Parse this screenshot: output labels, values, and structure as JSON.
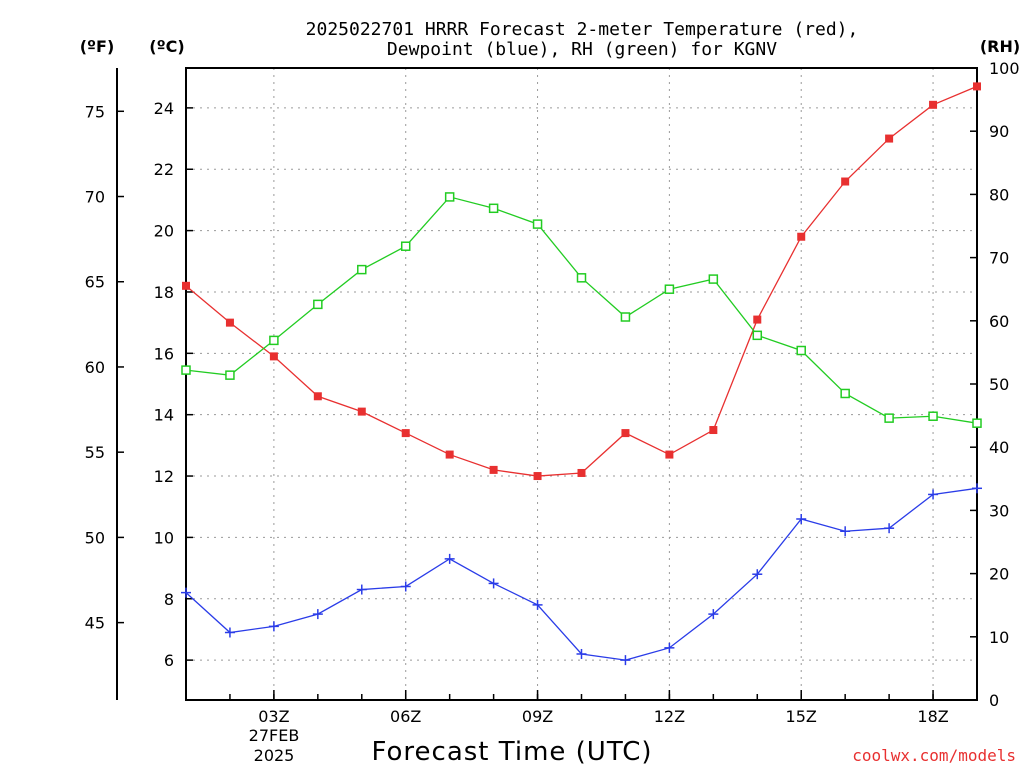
{
  "chart_data": {
    "type": "line",
    "title_line1": "2025022701 HRRR Forecast 2-meter Temperature (red),",
    "title_line2": "Dewpoint (blue), RH (green) for KGNV",
    "xlabel": "Forecast Time (UTC)",
    "date_line1": "27FEB",
    "date_line2": "2025",
    "credit": "coolwx.com/models",
    "unit_left_f": "(ºF)",
    "unit_left_c": "(ºC)",
    "unit_right": "(RH)",
    "x_hours": [
      1,
      2,
      3,
      4,
      5,
      6,
      7,
      8,
      9,
      10,
      11,
      12,
      13,
      14,
      15,
      16,
      17,
      18,
      19
    ],
    "x_ticks": [
      {
        "h": 3,
        "label": "03Z"
      },
      {
        "h": 6,
        "label": "06Z"
      },
      {
        "h": 9,
        "label": "09Z"
      },
      {
        "h": 12,
        "label": "12Z"
      },
      {
        "h": 15,
        "label": "15Z"
      },
      {
        "h": 18,
        "label": "18Z"
      }
    ],
    "xlim": [
      1,
      19
    ],
    "celsius_axis": {
      "ylim": [
        4.7,
        25.3
      ],
      "ticks": [
        6,
        8,
        10,
        12,
        14,
        16,
        18,
        20,
        22,
        24
      ]
    },
    "fahrenheit_axis": {
      "ylim": [
        40.46,
        77.54
      ],
      "ticks": [
        45,
        50,
        55,
        60,
        65,
        70,
        75
      ]
    },
    "rh_axis": {
      "ylim": [
        0,
        100
      ],
      "ticks": [
        0,
        10,
        20,
        30,
        40,
        50,
        60,
        70,
        80,
        90,
        100
      ]
    },
    "series": [
      {
        "name": "Temperature",
        "color": "#e83030",
        "marker": "filled-square",
        "axis": "celsius",
        "values": [
          18.2,
          17.0,
          15.9,
          14.6,
          14.1,
          13.4,
          12.7,
          12.2,
          12.0,
          12.1,
          13.4,
          12.7,
          13.5,
          17.1,
          19.8,
          21.6,
          23.0,
          24.1,
          24.7
        ]
      },
      {
        "name": "Dewpoint",
        "color": "#2a3ce8",
        "marker": "plus",
        "axis": "celsius",
        "values": [
          8.2,
          6.9,
          7.1,
          7.5,
          8.3,
          8.4,
          9.3,
          8.5,
          7.8,
          6.2,
          6.0,
          6.4,
          7.5,
          8.8,
          10.6,
          10.2,
          10.3,
          11.4,
          11.6
        ]
      },
      {
        "name": "RH",
        "color": "#22cc22",
        "marker": "open-square",
        "axis": "rh",
        "values": [
          52.2,
          51.4,
          56.9,
          62.6,
          68.1,
          71.8,
          79.6,
          77.8,
          75.3,
          66.8,
          60.6,
          65.0,
          66.6,
          57.7,
          55.3,
          48.5,
          44.6,
          44.9,
          43.8
        ]
      }
    ],
    "grid": true
  }
}
